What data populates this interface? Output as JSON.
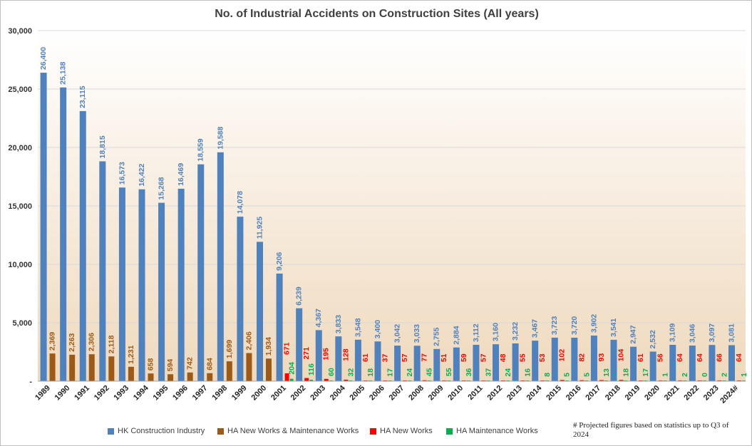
{
  "chart_data": {
    "type": "bar",
    "title": "No. of Industrial Accidents on Construction Sites (All years)",
    "categories": [
      "1989",
      "1990",
      "1991",
      "1992",
      "1993",
      "1994",
      "1995",
      "1996",
      "1997",
      "1998",
      "1999",
      "2000",
      "2001",
      "2002",
      "2003",
      "2004",
      "2005",
      "2006",
      "2007",
      "2008",
      "2009",
      "2010",
      "2011",
      "2012",
      "2013",
      "2014",
      "2015",
      "2016",
      "2017",
      "2018",
      "2019",
      "2020",
      "2021",
      "2022",
      "2023",
      "2024#"
    ],
    "ylim": [
      0,
      30000
    ],
    "yticks": [
      "-",
      "5,000",
      "10,000",
      "15,000",
      "20,000",
      "25,000",
      "30,000"
    ],
    "grid": true,
    "legend_position": "bottom",
    "series": [
      {
        "name": "HK Construction Industry",
        "color": "#4f81bd",
        "label_color": "#4f81bd",
        "values": [
          26400,
          25138,
          23115,
          18815,
          16573,
          16422,
          15268,
          16469,
          18559,
          19588,
          14078,
          11925,
          9206,
          6239,
          4367,
          3833,
          3548,
          3400,
          3042,
          3033,
          2755,
          2884,
          3112,
          3160,
          3232,
          3467,
          3723,
          3720,
          3902,
          3541,
          2947,
          2532,
          3109,
          3046,
          3097,
          3081
        ],
        "labels": [
          "26,400",
          "25,138",
          "23,115",
          "18,815",
          "16,573",
          "16,422",
          "15,268",
          "16,469",
          "18,559",
          "19,588",
          "14,078",
          "11,925",
          "9,206",
          "6,239",
          "4,367",
          "3,833",
          "3,548",
          "3,400",
          "3,042",
          "3,033",
          "2,755",
          "2,884",
          "3,112",
          "3,160",
          "3,232",
          "3,467",
          "3,723",
          "3,720",
          "3,902",
          "3,541",
          "2,947",
          "2,532",
          "3,109",
          "3,046",
          "3,097",
          "3,081"
        ]
      },
      {
        "name": "HA New Works & Maintenance Works",
        "color": "#9c5a18",
        "label_color": "#9c5a18",
        "values": [
          2369,
          2263,
          2306,
          2118,
          1231,
          658,
          594,
          742,
          684,
          1699,
          2406,
          1934,
          null,
          null,
          null,
          null,
          null,
          null,
          null,
          null,
          null,
          null,
          null,
          null,
          null,
          null,
          null,
          null,
          null,
          null,
          null,
          null,
          null,
          null,
          null,
          null
        ],
        "labels": [
          "2,369",
          "2,263",
          "2,306",
          "2,118",
          "1,231",
          "658",
          "594",
          "742",
          "684",
          "1,699",
          "2,406",
          "1,934",
          "",
          "",
          "",
          "",
          "",
          "",
          "",
          "",
          "",
          "",
          "",
          "",
          "",
          "",
          "",
          "",
          "",
          "",
          "",
          "",
          "",
          "",
          "",
          ""
        ]
      },
      {
        "name": "HA New Works",
        "color": "#ff0000",
        "label_color": "#ff0000",
        "values": [
          null,
          null,
          null,
          null,
          null,
          null,
          null,
          null,
          null,
          null,
          null,
          null,
          671,
          271,
          195,
          128,
          61,
          37,
          57,
          77,
          51,
          59,
          57,
          48,
          55,
          53,
          102,
          82,
          93,
          104,
          61,
          56,
          64,
          64,
          66,
          64
        ],
        "labels": [
          "",
          "",
          "",
          "",
          "",
          "",
          "",
          "",
          "",
          "",
          "",
          "",
          "671",
          "271",
          "195",
          "128",
          "61",
          "37",
          "57",
          "77",
          "51",
          "59",
          "57",
          "48",
          "55",
          "53",
          "102",
          "82",
          "93",
          "104",
          "61",
          "56",
          "64",
          "64",
          "66",
          "64"
        ]
      },
      {
        "name": "HA Maintenance Works",
        "color": "#00b050",
        "label_color": "#00b050",
        "values": [
          null,
          null,
          null,
          null,
          null,
          null,
          null,
          null,
          null,
          null,
          null,
          null,
          204,
          116,
          60,
          32,
          18,
          17,
          24,
          45,
          55,
          36,
          37,
          24,
          16,
          8,
          5,
          5,
          13,
          18,
          17,
          1,
          2,
          0,
          2,
          1
        ],
        "labels": [
          "",
          "",
          "",
          "",
          "",
          "",
          "",
          "",
          "",
          "",
          "",
          "",
          "204",
          "116",
          "60",
          "32",
          "18",
          "17",
          "24",
          "45",
          "55",
          "36",
          "37",
          "24",
          "16",
          "8",
          "5",
          "5",
          "13",
          "18",
          "17",
          "1",
          "2",
          "0",
          "2",
          "1"
        ]
      }
    ],
    "footnote": "# Projected figures based on statistics up to Q3 of 2024"
  }
}
